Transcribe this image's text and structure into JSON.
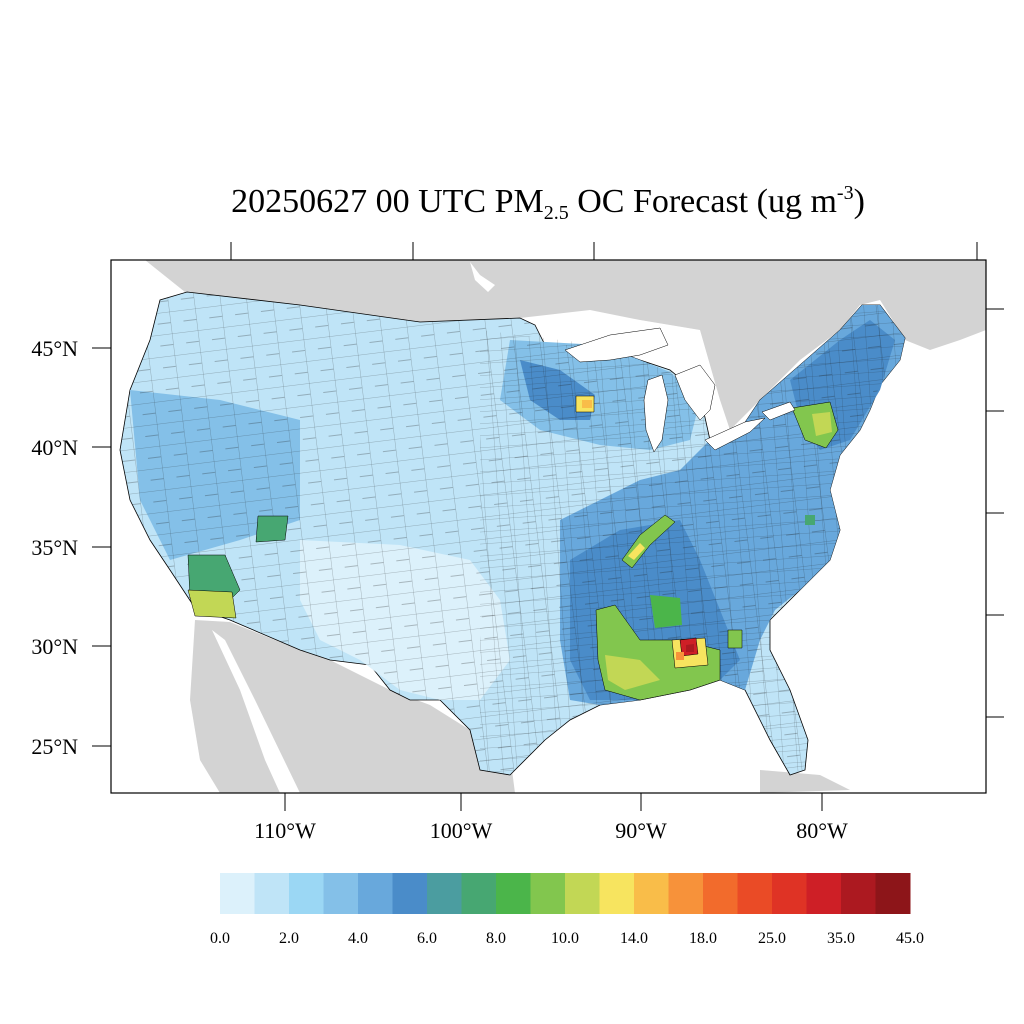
{
  "title": {
    "prefix": "20250627 00 UTC PM",
    "subscript": "2.5",
    "middle": " OC Forecast (ug m",
    "superscript": "-3",
    "suffix": ")"
  },
  "axes": {
    "lat_labels": [
      "45°N",
      "40°N",
      "35°N",
      "30°N",
      "25°N"
    ],
    "lon_labels": [
      "110°W",
      "100°W",
      "90°W",
      "80°W"
    ]
  },
  "colorbar": {
    "colors": [
      "#dcf1fb",
      "#bfe4f7",
      "#9bd7f4",
      "#84c0e8",
      "#68a8dc",
      "#4a8cc9",
      "#4b9da0",
      "#47a772",
      "#4bb54a",
      "#82c64e",
      "#c2d755",
      "#f7e45f",
      "#f9bd49",
      "#f7923a",
      "#f26b2c",
      "#ea4b26",
      "#df3325",
      "#ce1f26",
      "#ac1920",
      "#8d1519"
    ],
    "labels": [
      "0.0",
      "2.0",
      "4.0",
      "6.0",
      "8.0",
      "10.0",
      "14.0",
      "18.0",
      "25.0",
      "35.0",
      "45.0"
    ]
  },
  "map": {
    "land_color": "#d3d3d3",
    "water_color": "#ffffff",
    "background_category": "#bfe4f7"
  }
}
